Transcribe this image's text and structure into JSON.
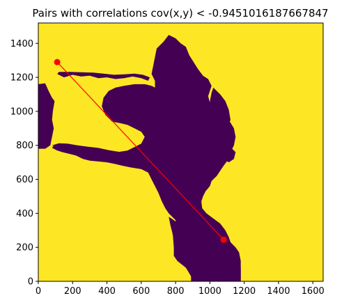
{
  "chart_data": {
    "type": "heatmap",
    "title": "Pairs with correlations cov(x,y) < -0.9451016187667847",
    "xlabel": "",
    "ylabel": "",
    "xlim": [
      0,
      1660
    ],
    "ylim": [
      0,
      1520
    ],
    "x_ticks": [
      0,
      200,
      400,
      600,
      800,
      1000,
      1200,
      1400,
      1600
    ],
    "y_ticks": [
      0,
      200,
      400,
      600,
      800,
      1000,
      1200,
      1400
    ],
    "colormap": {
      "background_value_color": "#fde725",
      "mask_value_color": "#440154"
    },
    "mask_regions": [
      {
        "name": "left-edge-blob",
        "polygon": [
          [
            0,
            1160
          ],
          [
            40,
            1165
          ],
          [
            60,
            1120
          ],
          [
            80,
            1080
          ],
          [
            95,
            1060
          ],
          [
            85,
            1000
          ],
          [
            80,
            950
          ],
          [
            90,
            900
          ],
          [
            80,
            850
          ],
          [
            70,
            800
          ],
          [
            40,
            780
          ],
          [
            0,
            780
          ]
        ]
      },
      {
        "name": "central-landmass",
        "polygon": [
          [
            690,
            1370
          ],
          [
            730,
            1410
          ],
          [
            760,
            1450
          ],
          [
            800,
            1430
          ],
          [
            830,
            1400
          ],
          [
            860,
            1380
          ],
          [
            880,
            1330
          ],
          [
            905,
            1290
          ],
          [
            930,
            1250
          ],
          [
            960,
            1210
          ],
          [
            990,
            1190
          ],
          [
            1010,
            1150
          ],
          [
            990,
            1090
          ],
          [
            1000,
            1050
          ],
          [
            1040,
            1030
          ],
          [
            1070,
            1000
          ],
          [
            1110,
            950
          ],
          [
            1140,
            900
          ],
          [
            1150,
            850
          ],
          [
            1140,
            800
          ],
          [
            1120,
            760
          ],
          [
            1110,
            720
          ],
          [
            1080,
            680
          ],
          [
            1060,
            650
          ],
          [
            1040,
            620
          ],
          [
            1010,
            590
          ],
          [
            1000,
            560
          ],
          [
            975,
            530
          ],
          [
            960,
            500
          ],
          [
            950,
            470
          ],
          [
            955,
            430
          ],
          [
            980,
            400
          ],
          [
            1020,
            370
          ],
          [
            1060,
            340
          ],
          [
            1090,
            300
          ],
          [
            1110,
            260
          ],
          [
            1120,
            230
          ],
          [
            1150,
            200
          ],
          [
            1170,
            170
          ],
          [
            1180,
            120
          ],
          [
            1180,
            60
          ],
          [
            1180,
            0
          ],
          [
            1140,
            0
          ],
          [
            900,
            0
          ],
          [
            890,
            30
          ],
          [
            860,
            80
          ],
          [
            810,
            120
          ],
          [
            790,
            150
          ],
          [
            790,
            200
          ],
          [
            785,
            260
          ],
          [
            790,
            320
          ],
          [
            800,
            360
          ],
          [
            780,
            380
          ],
          [
            760,
            400
          ],
          [
            740,
            430
          ],
          [
            720,
            470
          ],
          [
            700,
            520
          ],
          [
            680,
            560
          ],
          [
            660,
            600
          ],
          [
            640,
            640
          ],
          [
            600,
            660
          ],
          [
            540,
            670
          ],
          [
            490,
            680
          ],
          [
            450,
            690
          ],
          [
            400,
            700
          ],
          [
            350,
            705
          ],
          [
            300,
            710
          ],
          [
            260,
            720
          ],
          [
            220,
            740
          ],
          [
            180,
            750
          ],
          [
            140,
            760
          ],
          [
            110,
            770
          ],
          [
            80,
            785
          ],
          [
            90,
            800
          ],
          [
            120,
            795
          ],
          [
            160,
            800
          ],
          [
            220,
            790
          ],
          [
            280,
            780
          ],
          [
            340,
            770
          ],
          [
            400,
            760
          ],
          [
            460,
            760
          ],
          [
            520,
            770
          ],
          [
            560,
            790
          ],
          [
            600,
            810
          ],
          [
            620,
            850
          ],
          [
            600,
            880
          ],
          [
            560,
            900
          ],
          [
            520,
            920
          ],
          [
            480,
            930
          ],
          [
            430,
            940
          ],
          [
            390,
            980
          ],
          [
            370,
            1030
          ],
          [
            380,
            1080
          ],
          [
            410,
            1120
          ],
          [
            450,
            1140
          ],
          [
            500,
            1150
          ],
          [
            560,
            1160
          ],
          [
            620,
            1160
          ],
          [
            660,
            1150
          ],
          [
            680,
            1140
          ],
          [
            680,
            1180
          ],
          [
            660,
            1220
          ],
          [
            670,
            1270
          ],
          [
            680,
            1320
          ]
        ]
      },
      {
        "name": "upper-strip-blobs",
        "polygon": [
          [
            110,
            1220
          ],
          [
            150,
            1200
          ],
          [
            200,
            1215
          ],
          [
            250,
            1205
          ],
          [
            300,
            1210
          ],
          [
            350,
            1195
          ],
          [
            400,
            1200
          ],
          [
            450,
            1190
          ],
          [
            500,
            1195
          ],
          [
            550,
            1205
          ],
          [
            600,
            1195
          ],
          [
            640,
            1180
          ],
          [
            650,
            1200
          ],
          [
            610,
            1215
          ],
          [
            560,
            1222
          ],
          [
            500,
            1218
          ],
          [
            440,
            1215
          ],
          [
            380,
            1222
          ],
          [
            320,
            1228
          ],
          [
            250,
            1230
          ],
          [
            180,
            1232
          ],
          [
            120,
            1232
          ]
        ]
      },
      {
        "name": "mid-right-patch",
        "polygon": [
          [
            1020,
            1140
          ],
          [
            1060,
            1100
          ],
          [
            1090,
            1060
          ],
          [
            1110,
            1010
          ],
          [
            1120,
            950
          ],
          [
            1100,
            900
          ],
          [
            1070,
            870
          ],
          [
            1060,
            830
          ],
          [
            1080,
            800
          ],
          [
            1120,
            790
          ],
          [
            1150,
            760
          ],
          [
            1140,
            720
          ],
          [
            1110,
            700
          ],
          [
            1080,
            720
          ],
          [
            1050,
            760
          ],
          [
            1030,
            810
          ],
          [
            1010,
            860
          ],
          [
            995,
            910
          ],
          [
            980,
            960
          ],
          [
            990,
            1010
          ],
          [
            1000,
            1060
          ],
          [
            1010,
            1110
          ]
        ]
      },
      {
        "name": "lower-left-strip",
        "polygon": [
          [
            80,
            800
          ],
          [
            120,
            790
          ],
          [
            170,
            780
          ],
          [
            220,
            770
          ],
          [
            270,
            765
          ],
          [
            320,
            760
          ],
          [
            380,
            750
          ],
          [
            430,
            740
          ],
          [
            490,
            735
          ],
          [
            540,
            730
          ],
          [
            560,
            745
          ],
          [
            520,
            755
          ],
          [
            470,
            762
          ],
          [
            410,
            772
          ],
          [
            350,
            785
          ],
          [
            290,
            792
          ],
          [
            230,
            800
          ],
          [
            170,
            810
          ],
          [
            120,
            812
          ]
        ]
      },
      {
        "name": "bottom-plume",
        "polygon": [
          [
            760,
            380
          ],
          [
            790,
            360
          ],
          [
            820,
            330
          ],
          [
            850,
            300
          ],
          [
            880,
            260
          ],
          [
            910,
            230
          ],
          [
            930,
            200
          ],
          [
            960,
            180
          ],
          [
            1000,
            170
          ],
          [
            1040,
            160
          ],
          [
            1080,
            140
          ],
          [
            1110,
            120
          ],
          [
            1140,
            100
          ],
          [
            1180,
            80
          ],
          [
            1180,
            0
          ],
          [
            890,
            0
          ],
          [
            890,
            40
          ],
          [
            870,
            90
          ],
          [
            840,
            130
          ],
          [
            810,
            160
          ],
          [
            800,
            200
          ],
          [
            790,
            240
          ],
          [
            780,
            290
          ],
          [
            770,
            330
          ]
        ]
      }
    ],
    "series": [
      {
        "name": "pair-line",
        "type": "line",
        "color": "#ff0000",
        "x": [
          110,
          1080
        ],
        "y": [
          1290,
          245
        ]
      }
    ],
    "points": [
      {
        "x": 110,
        "y": 1290,
        "color": "#ff0000"
      },
      {
        "x": 1080,
        "y": 245,
        "color": "#ff0000"
      }
    ],
    "grid": false,
    "legend": "none"
  }
}
